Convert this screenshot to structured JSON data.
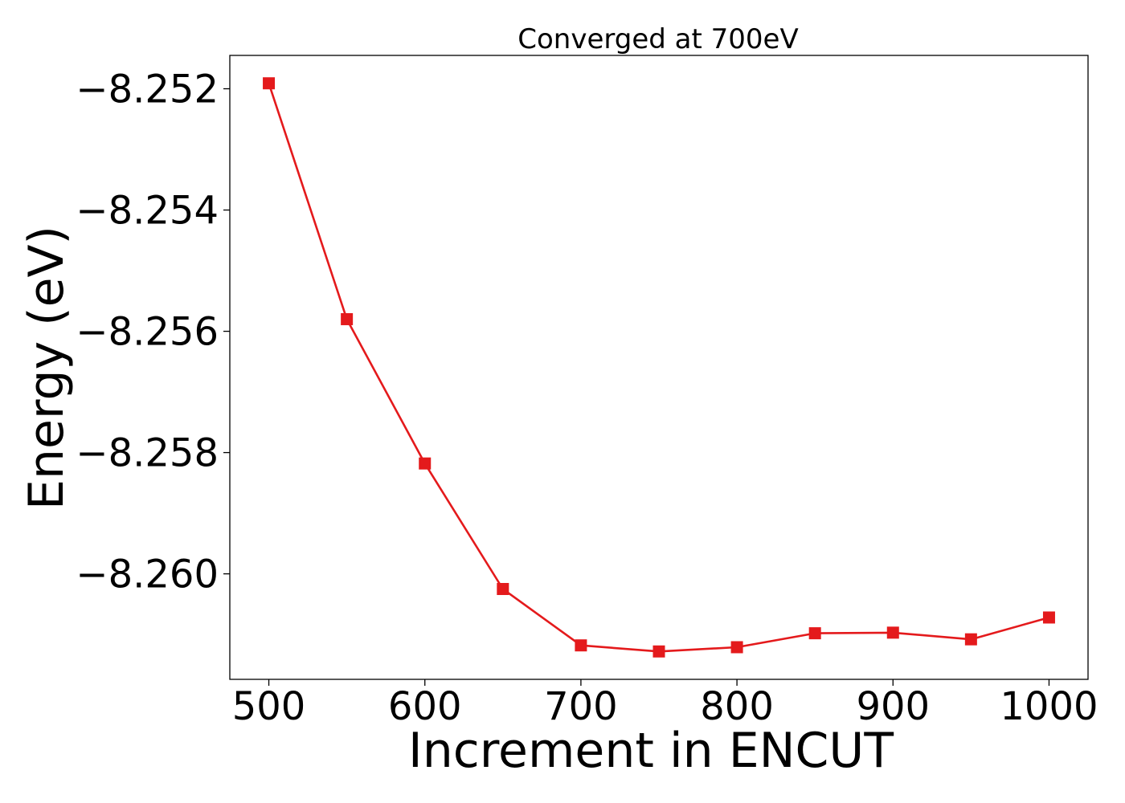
{
  "chart_data": {
    "type": "line",
    "title": "Converged at 700eV",
    "xlabel": "Increment in ENCUT",
    "ylabel": "Energy (eV)",
    "xlim": [
      475,
      1025
    ],
    "ylim": [
      -8.26174,
      -8.25145
    ],
    "x_ticks": [
      500,
      600,
      700,
      800,
      900,
      1000
    ],
    "x_tick_labels": [
      "500",
      "600",
      "700",
      "800",
      "900",
      "1000"
    ],
    "y_ticks": [
      -8.252,
      -8.254,
      -8.256,
      -8.258,
      -8.26
    ],
    "y_tick_labels": [
      "−8.252",
      "−8.254",
      "−8.256",
      "−8.258",
      "−8.260"
    ],
    "grid": false,
    "series": [
      {
        "color": "#e41a1c",
        "marker": "square",
        "x": [
          500,
          550,
          600,
          650,
          700,
          750,
          800,
          850,
          900,
          950,
          1000
        ],
        "values": [
          -8.25191,
          -8.2558,
          -8.25818,
          -8.26025,
          -8.26118,
          -8.26128,
          -8.26121,
          -8.26098,
          -8.26097,
          -8.26108,
          -8.26072
        ]
      }
    ]
  }
}
